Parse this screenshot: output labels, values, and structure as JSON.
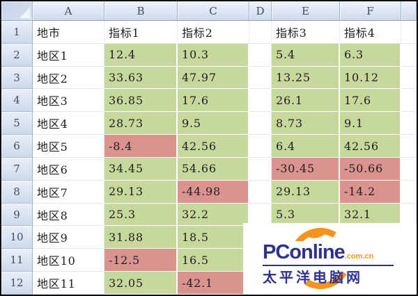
{
  "colors": {
    "positive_fill": "#c6d89c",
    "negative_fill": "#db938f",
    "header_border": "#9eb6ce",
    "brand_navy": "#2e3192",
    "brand_orange": "#f6921e"
  },
  "grid": {
    "col_headers": [
      "A",
      "B",
      "C",
      "D",
      "E",
      "F"
    ],
    "rows": [
      {
        "n": "1",
        "cells": [
          {
            "v": "地市"
          },
          {
            "v": "指标1"
          },
          {
            "v": "指标2"
          },
          {
            "v": ""
          },
          {
            "v": "指标3"
          },
          {
            "v": "指标4"
          }
        ]
      },
      {
        "n": "2",
        "cells": [
          {
            "v": "地区1"
          },
          {
            "v": "12.4",
            "f": "g"
          },
          {
            "v": "10.3",
            "f": "g"
          },
          {
            "v": ""
          },
          {
            "v": "5.4",
            "f": "g"
          },
          {
            "v": "6.3",
            "f": "g"
          }
        ]
      },
      {
        "n": "3",
        "cells": [
          {
            "v": "地区2"
          },
          {
            "v": "33.63",
            "f": "g"
          },
          {
            "v": "47.97",
            "f": "g"
          },
          {
            "v": ""
          },
          {
            "v": "13.25",
            "f": "g"
          },
          {
            "v": "10.12",
            "f": "g"
          }
        ]
      },
      {
        "n": "4",
        "cells": [
          {
            "v": "地区3"
          },
          {
            "v": "36.85",
            "f": "g"
          },
          {
            "v": "17.6",
            "f": "g"
          },
          {
            "v": ""
          },
          {
            "v": "26.1",
            "f": "g"
          },
          {
            "v": "17.6",
            "f": "g"
          }
        ]
      },
      {
        "n": "5",
        "cells": [
          {
            "v": "地区4"
          },
          {
            "v": "28.73",
            "f": "g"
          },
          {
            "v": "9.5",
            "f": "g"
          },
          {
            "v": ""
          },
          {
            "v": "8.73",
            "f": "g"
          },
          {
            "v": "9.1",
            "f": "g"
          }
        ]
      },
      {
        "n": "6",
        "cells": [
          {
            "v": "地区5"
          },
          {
            "v": "-8.4",
            "f": "r"
          },
          {
            "v": "42.56",
            "f": "g"
          },
          {
            "v": ""
          },
          {
            "v": "6.4",
            "f": "g"
          },
          {
            "v": "42.56",
            "f": "g"
          }
        ]
      },
      {
        "n": "7",
        "cells": [
          {
            "v": "地区6"
          },
          {
            "v": "34.45",
            "f": "g"
          },
          {
            "v": "54.66",
            "f": "g"
          },
          {
            "v": ""
          },
          {
            "v": "-30.45",
            "f": "r"
          },
          {
            "v": "-50.66",
            "f": "r"
          }
        ]
      },
      {
        "n": "8",
        "cells": [
          {
            "v": "地区7"
          },
          {
            "v": "29.13",
            "f": "g"
          },
          {
            "v": "-44.98",
            "f": "r"
          },
          {
            "v": ""
          },
          {
            "v": "29.13",
            "f": "g"
          },
          {
            "v": "-14.2",
            "f": "r"
          }
        ]
      },
      {
        "n": "9",
        "cells": [
          {
            "v": "地区8"
          },
          {
            "v": "25.3",
            "f": "g"
          },
          {
            "v": "32.2",
            "f": "g"
          },
          {
            "v": ""
          },
          {
            "v": "5.3",
            "f": "g"
          },
          {
            "v": "32.1",
            "f": "g"
          }
        ]
      },
      {
        "n": "10",
        "cells": [
          {
            "v": "地区9"
          },
          {
            "v": "31.88",
            "f": "g"
          },
          {
            "v": "18.5",
            "f": "g"
          },
          {
            "v": ""
          },
          {
            "v": ""
          },
          {
            "v": ""
          }
        ]
      },
      {
        "n": "11",
        "cells": [
          {
            "v": "地区10"
          },
          {
            "v": "-12.5",
            "f": "r"
          },
          {
            "v": "16.5",
            "f": "g"
          },
          {
            "v": ""
          },
          {
            "v": ""
          },
          {
            "v": ""
          }
        ]
      },
      {
        "n": "12",
        "cells": [
          {
            "v": "地区11"
          },
          {
            "v": "32.05",
            "f": "g"
          },
          {
            "v": "-42.1",
            "f": "r"
          },
          {
            "v": ""
          },
          {
            "v": ""
          },
          {
            "v": ""
          }
        ]
      }
    ]
  },
  "watermark": {
    "brand": "PConline",
    "suffix": ".com.cn",
    "cn_name": "太平洋电脑网"
  }
}
